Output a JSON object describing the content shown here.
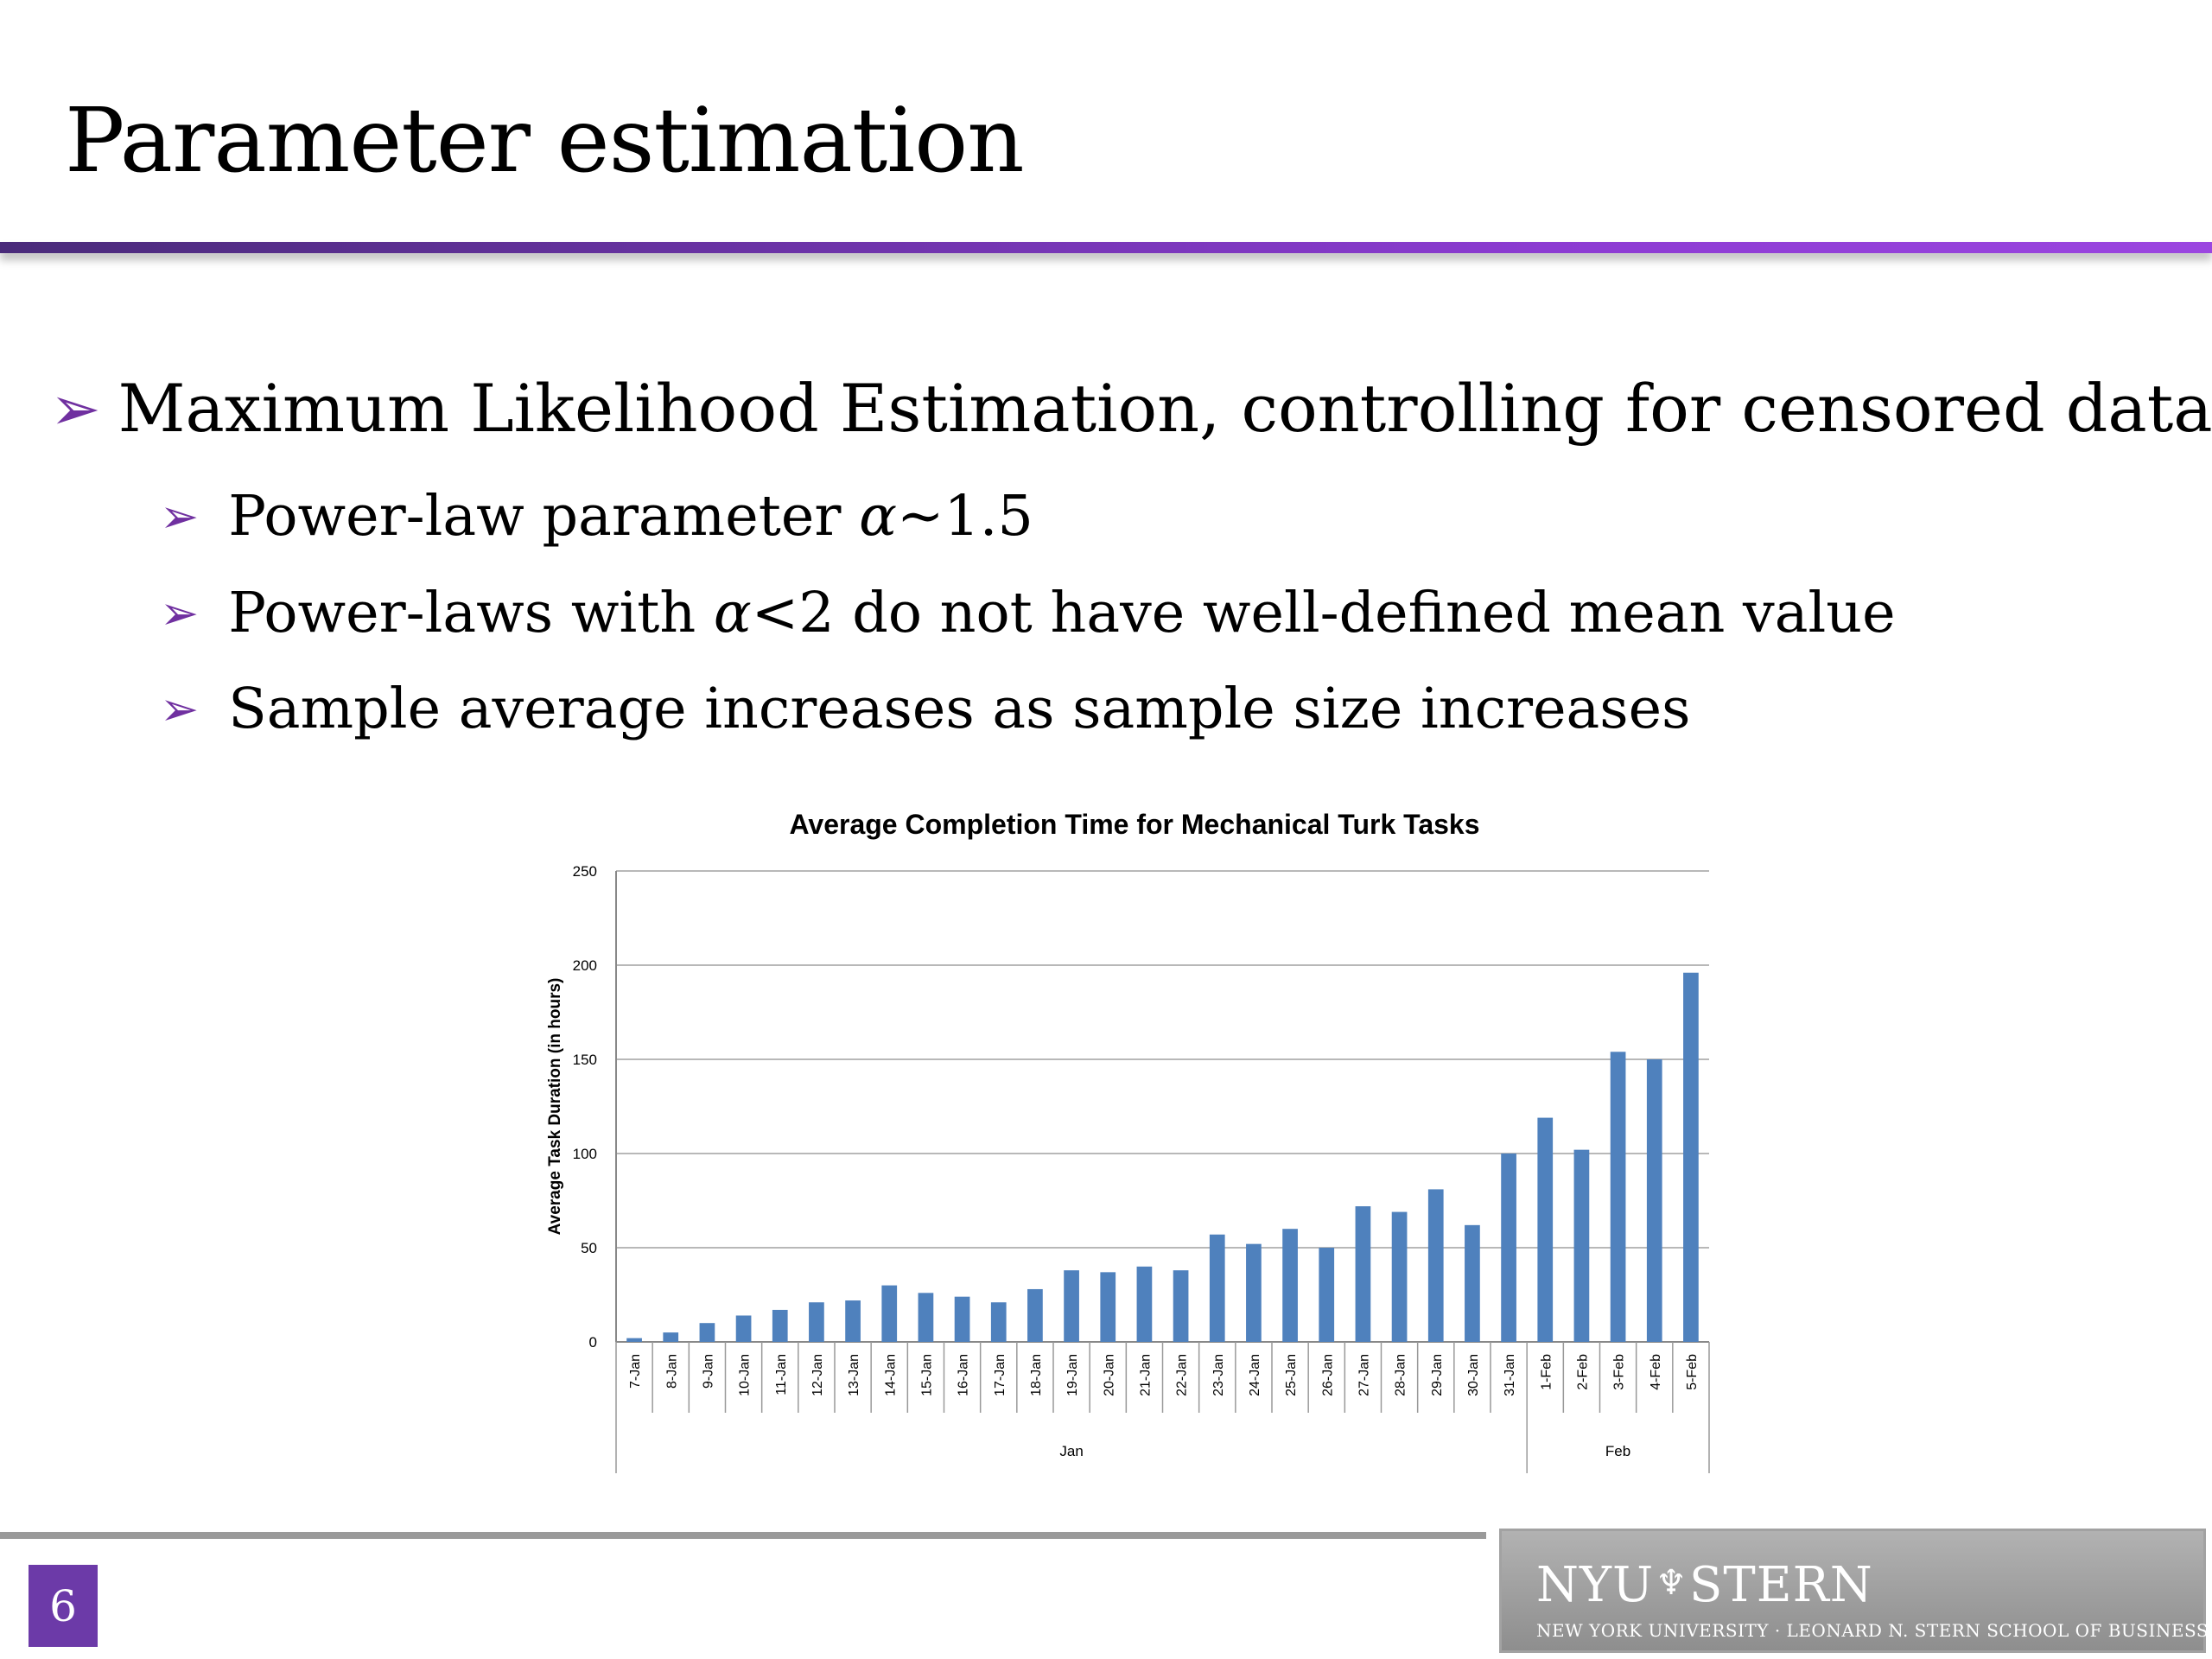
{
  "slide": {
    "title": "Parameter estimation",
    "page_number": "6",
    "arrow_glyph": "➢",
    "bullets": {
      "main": "Maximum Likelihood Estimation, controlling for censored data",
      "sub1_prefix": "Power-law parameter ",
      "sub1_alpha": "α",
      "sub1_suffix": "~1.5",
      "sub2_prefix": "Power-laws with ",
      "sub2_alpha": "α",
      "sub2_suffix": "<2 do not have well-defined mean value",
      "sub3": "Sample average increases as sample size increases"
    },
    "logo": {
      "main_left": "NYU",
      "torch": "♆",
      "main_right": "STERN",
      "subtitle": "NEW YORK UNIVERSITY · LEONARD N. STERN SCHOOL OF BUSINESS"
    }
  },
  "colors": {
    "accent_purple": "#7030a0",
    "bar_blue": "#4f81bd",
    "page_badge": "#6c3aa8"
  },
  "chart_data": {
    "type": "bar",
    "title": "Average Completion Time for Mechanical Turk Tasks",
    "xlabel": "",
    "ylabel": "Average Task Duration (in hours)",
    "ylim": [
      0,
      250
    ],
    "yticks": [
      0,
      50,
      100,
      150,
      200,
      250
    ],
    "grid": true,
    "categories": [
      "7-Jan",
      "8-Jan",
      "9-Jan",
      "10-Jan",
      "11-Jan",
      "12-Jan",
      "13-Jan",
      "14-Jan",
      "15-Jan",
      "16-Jan",
      "17-Jan",
      "18-Jan",
      "19-Jan",
      "20-Jan",
      "21-Jan",
      "22-Jan",
      "23-Jan",
      "24-Jan",
      "25-Jan",
      "26-Jan",
      "27-Jan",
      "28-Jan",
      "29-Jan",
      "30-Jan",
      "31-Jan",
      "1-Feb",
      "2-Feb",
      "3-Feb",
      "4-Feb",
      "5-Feb"
    ],
    "values": [
      2,
      5,
      10,
      14,
      17,
      21,
      22,
      30,
      26,
      24,
      21,
      28,
      38,
      37,
      40,
      38,
      57,
      52,
      60,
      50,
      72,
      69,
      81,
      62,
      100,
      119,
      102,
      154,
      150,
      196
    ],
    "groups": [
      {
        "label": "Jan",
        "count": 25
      },
      {
        "label": "Feb",
        "count": 5
      }
    ]
  }
}
